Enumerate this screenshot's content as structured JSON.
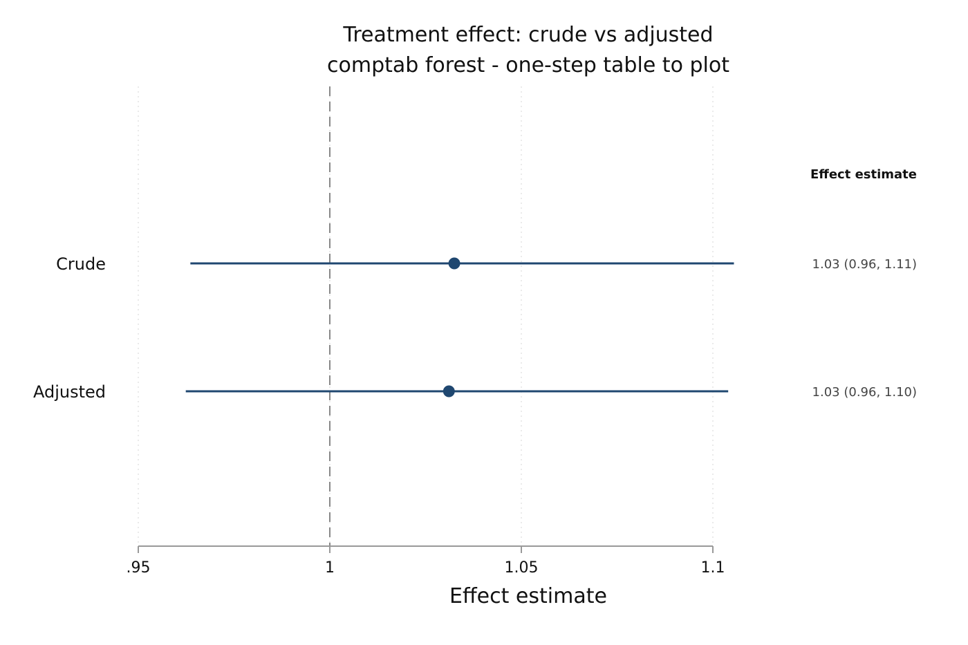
{
  "chart_data": {
    "type": "forest",
    "title": [
      "Treatment effect: crude vs adjusted",
      "comptab forest - one-step table to plot"
    ],
    "xlabel": "Effect estimate",
    "xlim": [
      0.95,
      1.1
    ],
    "xticks": [
      {
        "value": 0.95,
        "label": ".95"
      },
      {
        "value": 1.0,
        "label": "1"
      },
      {
        "value": 1.05,
        "label": "1.05"
      },
      {
        "value": 1.1,
        "label": "1.1"
      }
    ],
    "reference_line": 1.0,
    "grid": "vertical-dotted",
    "column_header": "Effect estimate",
    "rows": [
      {
        "label": "Crude",
        "estimate": 1.0325,
        "lower": 0.9636,
        "upper": 1.1055,
        "text": "1.03 (0.96, 1.11)"
      },
      {
        "label": "Adjusted",
        "estimate": 1.0311,
        "lower": 0.9624,
        "upper": 1.104,
        "text": "1.03 (0.96, 1.10)"
      }
    ],
    "colors": {
      "marker": "#1f4770",
      "ci_line": "#1f4770",
      "axis": "#999999",
      "reference": "#888888",
      "grid": "#d6d6d6"
    }
  }
}
